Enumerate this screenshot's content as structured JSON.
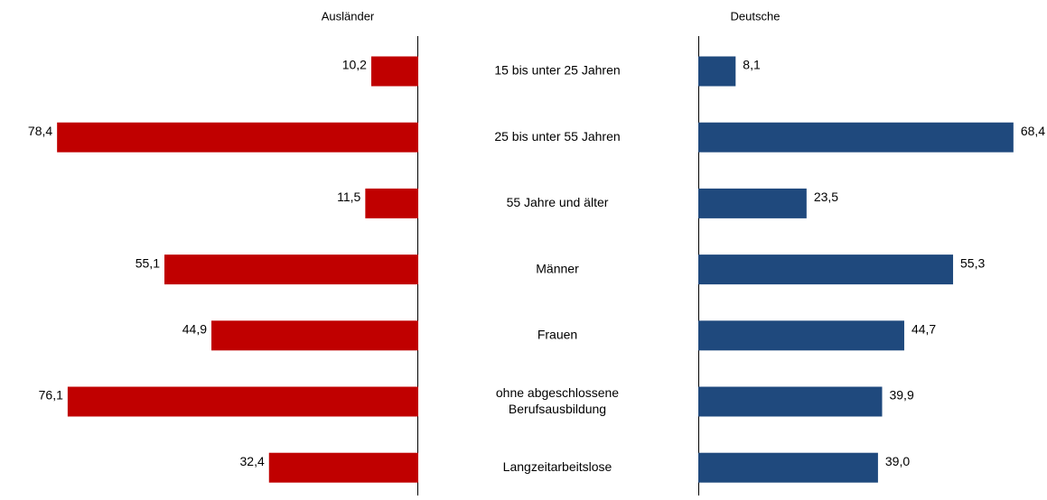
{
  "chart_data": {
    "type": "butterfly_bar",
    "categories": [
      "15 bis unter 25 Jahren",
      "25 bis unter 55 Jahren",
      "55 Jahre und älter",
      "Männer",
      "Frauen",
      "ohne abgeschlossene\nBerufsausbildung",
      "Langzeitarbeitslose"
    ],
    "series": [
      {
        "name": "Ausländer",
        "color": "#c00000",
        "values": [
          10.2,
          78.4,
          11.5,
          55.1,
          44.9,
          76.1,
          32.4
        ],
        "value_labels": [
          "10,2",
          "78,4",
          "11,5",
          "55,1",
          "44,9",
          "76,1",
          "32,4"
        ]
      },
      {
        "name": "Deutsche",
        "color": "#1f497d",
        "values": [
          8.1,
          68.4,
          23.5,
          55.3,
          44.7,
          39.9,
          39.0
        ],
        "value_labels": [
          "8,1",
          "68,4",
          "23,5",
          "55,3",
          "44,7",
          "39,9",
          "39,0"
        ]
      }
    ]
  }
}
